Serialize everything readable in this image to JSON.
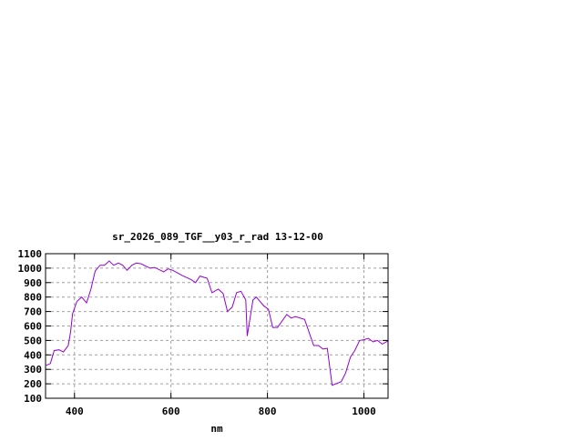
{
  "chart_data": {
    "type": "line",
    "title": "sr_2026_089_TGF__y03_r_rad 13-12-00",
    "xlabel": "nm",
    "ylabel": "",
    "xlim": [
      340,
      1050
    ],
    "ylim": [
      100,
      1100
    ],
    "xticks": [
      400,
      600,
      800,
      1000
    ],
    "yticks": [
      100,
      200,
      300,
      400,
      500,
      600,
      700,
      800,
      900,
      1000,
      1100
    ],
    "grid": true,
    "line_color": "#9400d3",
    "series": [
      {
        "x": [
          340,
          350,
          358,
          368,
          377,
          387,
          392,
          396,
          405,
          415,
          425,
          434,
          443,
          453,
          462,
          472,
          481,
          491,
          500,
          509,
          519,
          528,
          538,
          547,
          557,
          566,
          585,
          594,
          604,
          623,
          642,
          651,
          660,
          675,
          685,
          698,
          708,
          717,
          727,
          736,
          745,
          755,
          758,
          770,
          777,
          792,
          802,
          811,
          821,
          840,
          849,
          858,
          877,
          896,
          906,
          915,
          924,
          934,
          953,
          962,
          972,
          981,
          991,
          1000,
          1009,
          1019,
          1028,
          1038,
          1049
        ],
        "y": [
          325,
          340,
          430,
          435,
          420,
          465,
          560,
          685,
          770,
          800,
          760,
          855,
          980,
          1020,
          1020,
          1050,
          1020,
          1035,
          1020,
          985,
          1020,
          1035,
          1030,
          1015,
          1000,
          1005,
          975,
          995,
          985,
          950,
          920,
          900,
          945,
          930,
          830,
          855,
          825,
          700,
          730,
          830,
          840,
          780,
          530,
          780,
          800,
          740,
          715,
          590,
          590,
          680,
          655,
          665,
          645,
          465,
          465,
          440,
          445,
          190,
          215,
          275,
          385,
          430,
          500,
          505,
          515,
          490,
          500,
          475,
          495
        ]
      }
    ]
  }
}
